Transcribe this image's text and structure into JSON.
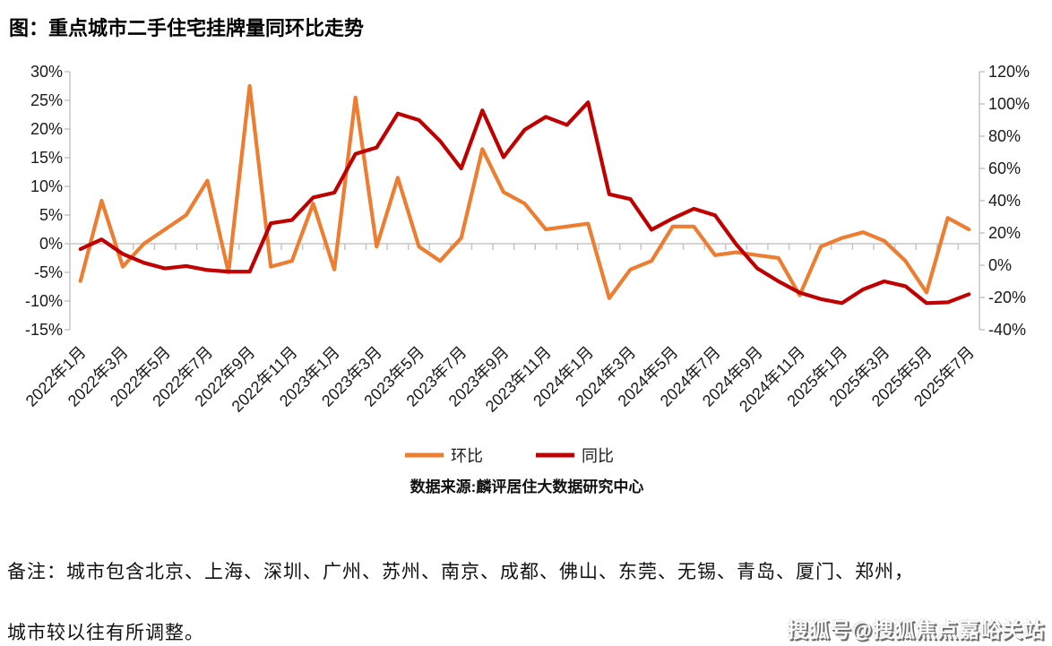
{
  "title": "图：重点城市二手住宅挂牌量同环比走势",
  "legend": {
    "mom": "环比",
    "yoy": "同比"
  },
  "source": "数据来源:麟评居住大数据研究中心",
  "notes": {
    "line1": "备注：城市包含北京、上海、深圳、广州、苏州、南京、成都、佛山、东莞、无锡、青岛、厦门、郑州，",
    "line2": "城市较以往有所调整。"
  },
  "watermark": "搜狐号@搜狐焦点嘉峪关站",
  "colors": {
    "mom": "#ED7D31",
    "yoy": "#C00000",
    "axis": "#C6C6C6",
    "text": "#1a1a1a"
  },
  "chart_data": {
    "type": "line",
    "title": "重点城市二手住宅挂牌量同环比走势",
    "x": [
      "2022年1月",
      "2022年2月",
      "2022年3月",
      "2022年4月",
      "2022年5月",
      "2022年6月",
      "2022年7月",
      "2022年8月",
      "2022年9月",
      "2022年10月",
      "2022年11月",
      "2022年12月",
      "2023年1月",
      "2023年2月",
      "2023年3月",
      "2023年4月",
      "2023年5月",
      "2023年6月",
      "2023年7月",
      "2023年8月",
      "2023年9月",
      "2023年10月",
      "2023年11月",
      "2023年12月",
      "2024年1月",
      "2024年2月",
      "2024年3月",
      "2024年4月",
      "2024年5月",
      "2024年6月",
      "2024年7月",
      "2024年8月",
      "2024年9月",
      "2024年10月",
      "2024年11月",
      "2024年12月",
      "2025年1月",
      "2025年2月",
      "2025年3月",
      "2025年4月",
      "2025年5月",
      "2025年6月",
      "2025年7月"
    ],
    "x_tick_step": 2,
    "x_tick_labels": [
      "2022年1月",
      "2022年3月",
      "2022年5月",
      "2022年7月",
      "2022年9月",
      "2022年11月",
      "2023年1月",
      "2023年3月",
      "2023年5月",
      "2023年7月",
      "2023年9月",
      "2023年11月",
      "2024年1月",
      "2024年3月",
      "2024年5月",
      "2024年7月",
      "2024年9月",
      "2024年11月",
      "2025年1月",
      "2025年3月",
      "2025年5月",
      "2025年7月"
    ],
    "left_axis": {
      "min": -15,
      "max": 30,
      "step": 5,
      "labels": [
        "30%",
        "25%",
        "20%",
        "15%",
        "10%",
        "5%",
        "0%",
        "-5%",
        "-10%",
        "-15%"
      ]
    },
    "right_axis": {
      "min": -40,
      "max": 120,
      "step": 20,
      "labels": [
        "120%",
        "100%",
        "80%",
        "60%",
        "40%",
        "20%",
        "0%",
        "-20%",
        "-40%"
      ]
    },
    "grid": false,
    "legend_position": "bottom",
    "series": [
      {
        "name": "环比",
        "axis": "left",
        "color": "#ED7D31",
        "values": [
          -6.5,
          7.5,
          -4,
          0,
          2.5,
          5,
          11,
          -5,
          27.5,
          -4,
          -3,
          7,
          -4.5,
          25.5,
          -0.5,
          11.5,
          -0.5,
          -3,
          1,
          16.5,
          9,
          7,
          2.5,
          3,
          3.5,
          -9.5,
          -4.5,
          -3,
          3,
          3,
          -2,
          -1.5,
          -2,
          -2.5,
          -9,
          -0.5,
          1,
          2,
          0.5,
          -3,
          -8.5,
          4.5,
          2.5
        ]
      },
      {
        "name": "同比",
        "axis": "right",
        "color": "#C00000",
        "values": [
          10,
          16,
          7,
          1.5,
          -2,
          -0.5,
          -3,
          -4,
          -4,
          26,
          28,
          42,
          45,
          69,
          73,
          94,
          90,
          77,
          60,
          96,
          67,
          84,
          92,
          87,
          101,
          44,
          41,
          22,
          29,
          35,
          31,
          13,
          -2,
          -10,
          -17,
          -21,
          -23.5,
          -15,
          -10,
          -13,
          -23.5,
          -23,
          -18
        ]
      }
    ]
  }
}
